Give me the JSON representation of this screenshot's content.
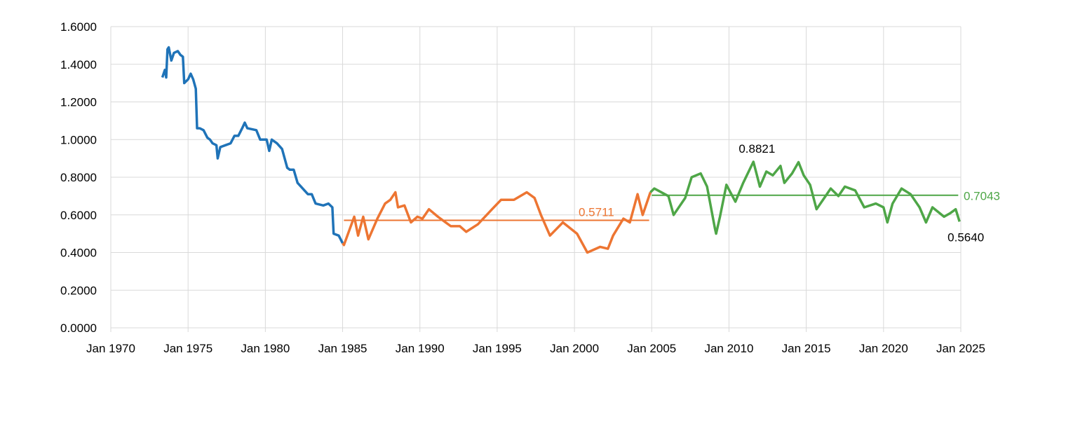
{
  "chart_data": {
    "type": "line",
    "title": "",
    "xlabel": "",
    "ylabel": "",
    "x_axis": {
      "type": "date",
      "range": [
        "1970-01",
        "2025-01"
      ],
      "tick_labels": [
        "Jan 1970",
        "Jan 1975",
        "Jan 1980",
        "Jan 1985",
        "Jan 1990",
        "Jan 1995",
        "Jan 2000",
        "Jan 2005",
        "Jan 2010",
        "Jan 2015",
        "Jan 2020",
        "Jan 2025"
      ],
      "tick_dates": [
        "1970-01",
        "1975-01",
        "1980-01",
        "1985-01",
        "1990-01",
        "1995-01",
        "2000-01",
        "2005-01",
        "2010-01",
        "2015-01",
        "2020-01",
        "2025-01"
      ]
    },
    "y_axis": {
      "range": [
        0,
        1.6
      ],
      "tick_values": [
        0,
        0.2,
        0.4,
        0.6,
        0.8,
        1.0,
        1.2,
        1.4,
        1.6
      ],
      "tick_labels": [
        "0.0000",
        "0.2000",
        "0.4000",
        "0.6000",
        "0.8000",
        "1.0000",
        "1.2000",
        "1.4000",
        "1.6000"
      ]
    },
    "grid": true,
    "legend": "none",
    "series": [
      {
        "color": "#1f73b8",
        "points": [
          [
            "1973-05",
            1.33
          ],
          [
            "1973-07",
            1.37
          ],
          [
            "1973-08",
            1.33
          ],
          [
            "1973-09",
            1.48
          ],
          [
            "1973-10",
            1.49
          ],
          [
            "1973-12",
            1.42
          ],
          [
            "1974-02",
            1.46
          ],
          [
            "1974-05",
            1.47
          ],
          [
            "1974-07",
            1.45
          ],
          [
            "1974-09",
            1.44
          ],
          [
            "1974-10",
            1.3
          ],
          [
            "1975-01",
            1.32
          ],
          [
            "1975-03",
            1.35
          ],
          [
            "1975-05",
            1.32
          ],
          [
            "1975-07",
            1.27
          ],
          [
            "1975-08",
            1.06
          ],
          [
            "1975-10",
            1.06
          ],
          [
            "1976-01",
            1.05
          ],
          [
            "1976-04",
            1.01
          ],
          [
            "1976-06",
            1.0
          ],
          [
            "1976-08",
            0.98
          ],
          [
            "1976-11",
            0.97
          ],
          [
            "1976-12",
            0.9
          ],
          [
            "1977-02",
            0.96
          ],
          [
            "1977-06",
            0.97
          ],
          [
            "1977-10",
            0.98
          ],
          [
            "1978-01",
            1.02
          ],
          [
            "1978-04",
            1.02
          ],
          [
            "1978-07",
            1.06
          ],
          [
            "1978-09",
            1.09
          ],
          [
            "1978-11",
            1.06
          ],
          [
            "1979-06",
            1.05
          ],
          [
            "1979-09",
            1.0
          ],
          [
            "1980-02",
            1.0
          ],
          [
            "1980-04",
            0.94
          ],
          [
            "1980-06",
            1.0
          ],
          [
            "1980-10",
            0.98
          ],
          [
            "1981-02",
            0.95
          ],
          [
            "1981-06",
            0.85
          ],
          [
            "1981-08",
            0.84
          ],
          [
            "1981-11",
            0.84
          ],
          [
            "1982-02",
            0.77
          ],
          [
            "1982-06",
            0.74
          ],
          [
            "1982-10",
            0.71
          ],
          [
            "1983-01",
            0.71
          ],
          [
            "1983-04",
            0.66
          ],
          [
            "1983-10",
            0.65
          ],
          [
            "1984-02",
            0.66
          ],
          [
            "1984-05",
            0.64
          ],
          [
            "1984-06",
            0.5
          ],
          [
            "1984-10",
            0.49
          ],
          [
            "1985-01",
            0.45
          ]
        ]
      },
      {
        "color": "#ed7532",
        "points": [
          [
            "1985-01",
            0.45
          ],
          [
            "1985-02",
            0.44
          ],
          [
            "1985-10",
            0.59
          ],
          [
            "1986-01",
            0.49
          ],
          [
            "1986-05",
            0.59
          ],
          [
            "1986-09",
            0.47
          ],
          [
            "1987-04",
            0.58
          ],
          [
            "1987-10",
            0.66
          ],
          [
            "1988-02",
            0.68
          ],
          [
            "1988-06",
            0.72
          ],
          [
            "1988-08",
            0.64
          ],
          [
            "1989-01",
            0.65
          ],
          [
            "1989-06",
            0.56
          ],
          [
            "1989-11",
            0.59
          ],
          [
            "1990-03",
            0.58
          ],
          [
            "1990-08",
            0.63
          ],
          [
            "1991-03",
            0.59
          ],
          [
            "1992-01",
            0.54
          ],
          [
            "1992-08",
            0.54
          ],
          [
            "1993-01",
            0.51
          ],
          [
            "1993-10",
            0.55
          ],
          [
            "1994-09",
            0.63
          ],
          [
            "1995-04",
            0.68
          ],
          [
            "1996-02",
            0.68
          ],
          [
            "1996-12",
            0.72
          ],
          [
            "1997-06",
            0.69
          ],
          [
            "1997-11",
            0.6
          ],
          [
            "1998-06",
            0.49
          ],
          [
            "1999-04",
            0.56
          ],
          [
            "2000-03",
            0.5
          ],
          [
            "2000-11",
            0.4
          ],
          [
            "2001-09",
            0.43
          ],
          [
            "2002-03",
            0.42
          ],
          [
            "2002-07",
            0.49
          ],
          [
            "2003-03",
            0.58
          ],
          [
            "2003-08",
            0.56
          ],
          [
            "2004-02",
            0.71
          ],
          [
            "2004-06",
            0.6
          ],
          [
            "2004-12",
            0.72
          ]
        ]
      },
      {
        "color": "#4ea647",
        "points": [
          [
            "2004-12",
            0.72
          ],
          [
            "2005-03",
            0.74
          ],
          [
            "2006-02",
            0.7
          ],
          [
            "2006-06",
            0.6
          ],
          [
            "2007-03",
            0.69
          ],
          [
            "2007-08",
            0.8
          ],
          [
            "2008-03",
            0.82
          ],
          [
            "2008-08",
            0.75
          ],
          [
            "2009-02",
            0.53
          ],
          [
            "2009-03",
            0.5
          ],
          [
            "2009-06",
            0.59
          ],
          [
            "2009-11",
            0.76
          ],
          [
            "2010-06",
            0.67
          ],
          [
            "2010-12",
            0.77
          ],
          [
            "2011-08",
            0.8821
          ],
          [
            "2012-01",
            0.75
          ],
          [
            "2012-06",
            0.83
          ],
          [
            "2012-11",
            0.81
          ],
          [
            "2013-05",
            0.86
          ],
          [
            "2013-08",
            0.77
          ],
          [
            "2014-02",
            0.82
          ],
          [
            "2014-07",
            0.88
          ],
          [
            "2014-11",
            0.81
          ],
          [
            "2015-04",
            0.76
          ],
          [
            "2015-09",
            0.63
          ],
          [
            "2016-03",
            0.69
          ],
          [
            "2016-08",
            0.74
          ],
          [
            "2017-02",
            0.7
          ],
          [
            "2017-07",
            0.75
          ],
          [
            "2018-03",
            0.73
          ],
          [
            "2018-10",
            0.64
          ],
          [
            "2019-07",
            0.66
          ],
          [
            "2020-01",
            0.64
          ],
          [
            "2020-04",
            0.56
          ],
          [
            "2020-08",
            0.66
          ],
          [
            "2021-03",
            0.74
          ],
          [
            "2021-10",
            0.71
          ],
          [
            "2022-05",
            0.64
          ],
          [
            "2022-10",
            0.56
          ],
          [
            "2023-03",
            0.64
          ],
          [
            "2023-12",
            0.59
          ],
          [
            "2024-05",
            0.61
          ],
          [
            "2024-09",
            0.63
          ],
          [
            "2024-12",
            0.564
          ]
        ]
      }
    ],
    "reference_lines": [
      {
        "value": 0.5711,
        "label": "0.5711",
        "from": "1985-02",
        "to": "2004-11",
        "color": "#ed7532"
      },
      {
        "value": 0.7043,
        "label": "0.7043",
        "from": "2005-01",
        "to": "2024-11",
        "color": "#4ea647"
      }
    ],
    "annotations": [
      {
        "label": "0.8821",
        "date": "2011-08",
        "value": 0.8821,
        "color": "#000000"
      },
      {
        "label": "0.5640",
        "date": "2024-12",
        "value": 0.564,
        "color": "#000000"
      }
    ]
  }
}
